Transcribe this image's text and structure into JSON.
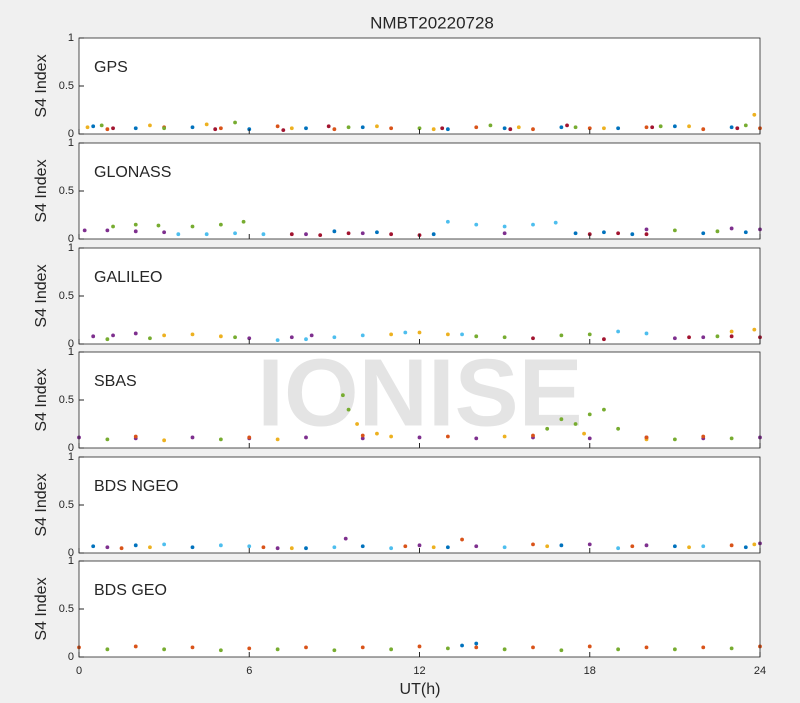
{
  "title": "NMBT20220728",
  "watermark": "IONISE",
  "xlabel": "UT(h)",
  "xlim": [
    0,
    24
  ],
  "xticks": [
    0,
    6,
    12,
    18,
    24
  ],
  "chart_data": [
    {
      "type": "scatter",
      "label": "GPS",
      "ylabel": "S4 Index",
      "ylim": [
        0,
        1
      ],
      "yticks": [
        0,
        0.5,
        1
      ],
      "series": [
        {
          "color": "#0072BD",
          "x": [
            0.5,
            2,
            4,
            6,
            8,
            10,
            13,
            15,
            17,
            19,
            21,
            23
          ],
          "values": [
            0.08,
            0.06,
            0.07,
            0.05,
            0.06,
            0.07,
            0.05,
            0.06,
            0.07,
            0.06,
            0.08,
            0.07
          ]
        },
        {
          "color": "#D95319",
          "x": [
            1,
            3,
            5,
            7,
            9,
            11,
            14,
            16,
            18,
            20,
            22,
            24
          ],
          "values": [
            0.05,
            0.07,
            0.06,
            0.08,
            0.05,
            0.06,
            0.07,
            0.05,
            0.06,
            0.07,
            0.05,
            0.06
          ]
        },
        {
          "color": "#EDB120",
          "x": [
            0.3,
            2.5,
            4.5,
            7.5,
            10.5,
            12.5,
            15.5,
            18.5,
            21.5,
            23.8
          ],
          "values": [
            0.07,
            0.09,
            0.1,
            0.06,
            0.08,
            0.05,
            0.07,
            0.06,
            0.08,
            0.2
          ]
        },
        {
          "color": "#77AC30",
          "x": [
            0.8,
            3,
            5.5,
            9.5,
            12,
            14.5,
            17.5,
            20.5,
            23.5
          ],
          "values": [
            0.09,
            0.06,
            0.12,
            0.07,
            0.06,
            0.09,
            0.07,
            0.08,
            0.09
          ]
        },
        {
          "color": "#A2142F",
          "x": [
            1.2,
            4.8,
            7.2,
            8.8,
            12.8,
            15.2,
            17.2,
            20.2,
            23.2
          ],
          "values": [
            0.06,
            0.05,
            0.04,
            0.08,
            0.06,
            0.05,
            0.09,
            0.07,
            0.06
          ]
        }
      ]
    },
    {
      "type": "scatter",
      "label": "GLONASS",
      "ylabel": "S4 Index",
      "ylim": [
        0,
        1
      ],
      "yticks": [
        0,
        0.5,
        1
      ],
      "series": [
        {
          "color": "#7E2F8E",
          "x": [
            0.2,
            1,
            2,
            3,
            8,
            10,
            15,
            20,
            23,
            24
          ],
          "values": [
            0.09,
            0.09,
            0.08,
            0.07,
            0.05,
            0.06,
            0.06,
            0.1,
            0.11,
            0.1
          ]
        },
        {
          "color": "#77AC30",
          "x": [
            1.2,
            2,
            2.8,
            4,
            5,
            5.8,
            21,
            22.5
          ],
          "values": [
            0.13,
            0.15,
            0.14,
            0.13,
            0.15,
            0.18,
            0.09,
            0.08
          ]
        },
        {
          "color": "#4DBEEE",
          "x": [
            3.5,
            4.5,
            5.5,
            6.5,
            13,
            14,
            15,
            16,
            16.8
          ],
          "values": [
            0.05,
            0.05,
            0.06,
            0.05,
            0.18,
            0.15,
            0.13,
            0.15,
            0.17
          ]
        },
        {
          "color": "#A2142F",
          "x": [
            7.5,
            8.5,
            9.5,
            11,
            12,
            18,
            19,
            20
          ],
          "values": [
            0.05,
            0.04,
            0.06,
            0.05,
            0.04,
            0.05,
            0.06,
            0.05
          ]
        },
        {
          "color": "#0072BD",
          "x": [
            9,
            10.5,
            12.5,
            17.5,
            18.5,
            19.5,
            22,
            23.5
          ],
          "values": [
            0.08,
            0.07,
            0.05,
            0.06,
            0.07,
            0.05,
            0.06,
            0.07
          ]
        }
      ]
    },
    {
      "type": "scatter",
      "label": "GALILEO",
      "ylabel": "S4 Index",
      "ylim": [
        0,
        1
      ],
      "yticks": [
        0,
        0.5,
        1
      ],
      "series": [
        {
          "color": "#7E2F8E",
          "x": [
            0.5,
            1.2,
            2,
            6,
            7.5,
            8.2,
            21,
            22
          ],
          "values": [
            0.08,
            0.09,
            0.11,
            0.06,
            0.07,
            0.09,
            0.06,
            0.07
          ]
        },
        {
          "color": "#EDB120",
          "x": [
            3,
            4,
            5,
            11,
            12,
            13,
            23,
            23.8
          ],
          "values": [
            0.09,
            0.1,
            0.08,
            0.1,
            0.12,
            0.1,
            0.13,
            0.15
          ]
        },
        {
          "color": "#4DBEEE",
          "x": [
            7,
            8,
            9,
            10,
            11.5,
            13.5,
            19,
            20
          ],
          "values": [
            0.04,
            0.05,
            0.07,
            0.09,
            0.12,
            0.1,
            0.13,
            0.11
          ]
        },
        {
          "color": "#77AC30",
          "x": [
            1,
            2.5,
            5.5,
            14,
            15,
            17,
            18,
            22.5
          ],
          "values": [
            0.05,
            0.06,
            0.07,
            0.08,
            0.07,
            0.09,
            0.1,
            0.08
          ]
        },
        {
          "color": "#A2142F",
          "x": [
            16,
            18.5,
            21.5,
            23,
            24
          ],
          "values": [
            0.06,
            0.05,
            0.07,
            0.08,
            0.07
          ]
        }
      ]
    },
    {
      "type": "scatter",
      "label": "SBAS",
      "ylabel": "S4 Index",
      "ylim": [
        0,
        1
      ],
      "yticks": [
        0,
        0.5,
        1
      ],
      "series": [
        {
          "color": "#7E2F8E",
          "x": [
            0,
            2,
            4,
            6,
            8,
            10,
            12,
            14,
            16,
            18,
            20,
            22,
            24
          ],
          "values": [
            0.11,
            0.1,
            0.11,
            0.1,
            0.11,
            0.1,
            0.11,
            0.1,
            0.11,
            0.1,
            0.11,
            0.1,
            0.11
          ]
        },
        {
          "color": "#77AC30",
          "x": [
            1,
            5,
            9.3,
            9.5,
            16.5,
            17,
            17.5,
            18,
            18.5,
            19,
            21,
            23
          ],
          "values": [
            0.09,
            0.09,
            0.55,
            0.4,
            0.2,
            0.3,
            0.25,
            0.35,
            0.4,
            0.2,
            0.09,
            0.1
          ]
        },
        {
          "color": "#EDB120",
          "x": [
            3,
            7,
            9.8,
            10.5,
            11,
            15,
            17.8,
            20
          ],
          "values": [
            0.08,
            0.09,
            0.25,
            0.15,
            0.12,
            0.12,
            0.15,
            0.09
          ]
        },
        {
          "color": "#D95319",
          "x": [
            2,
            6,
            10,
            13,
            16,
            20,
            22
          ],
          "values": [
            0.12,
            0.11,
            0.13,
            0.12,
            0.13,
            0.11,
            0.12
          ]
        }
      ]
    },
    {
      "type": "scatter",
      "label": "BDS NGEO",
      "ylabel": "S4 Index",
      "ylim": [
        0,
        1
      ],
      "yticks": [
        0,
        0.5,
        1
      ],
      "series": [
        {
          "color": "#0072BD",
          "x": [
            0.5,
            2,
            4,
            8,
            10,
            13,
            17,
            21,
            23.5
          ],
          "values": [
            0.07,
            0.08,
            0.06,
            0.05,
            0.07,
            0.06,
            0.08,
            0.07,
            0.06
          ]
        },
        {
          "color": "#4DBEEE",
          "x": [
            3,
            5,
            6,
            9,
            11,
            15,
            19,
            22
          ],
          "values": [
            0.09,
            0.08,
            0.07,
            0.06,
            0.05,
            0.06,
            0.05,
            0.07
          ]
        },
        {
          "color": "#7E2F8E",
          "x": [
            1,
            7,
            9.4,
            12,
            14,
            18,
            20,
            24
          ],
          "values": [
            0.06,
            0.05,
            0.15,
            0.08,
            0.07,
            0.09,
            0.08,
            0.1
          ]
        },
        {
          "color": "#D95319",
          "x": [
            1.5,
            6.5,
            11.5,
            13.5,
            16,
            19.5,
            23
          ],
          "values": [
            0.05,
            0.06,
            0.07,
            0.14,
            0.09,
            0.07,
            0.08
          ]
        },
        {
          "color": "#EDB120",
          "x": [
            2.5,
            7.5,
            12.5,
            16.5,
            21.5,
            23.8
          ],
          "values": [
            0.06,
            0.05,
            0.06,
            0.07,
            0.06,
            0.09
          ]
        }
      ]
    },
    {
      "type": "scatter",
      "label": "BDS GEO",
      "ylabel": "S4 Index",
      "ylim": [
        0,
        1
      ],
      "yticks": [
        0,
        0.5,
        1
      ],
      "series": [
        {
          "color": "#D95319",
          "x": [
            0,
            2,
            4,
            6,
            8,
            10,
            12,
            14,
            16,
            18,
            20,
            22,
            24
          ],
          "values": [
            0.1,
            0.11,
            0.1,
            0.09,
            0.1,
            0.1,
            0.11,
            0.1,
            0.1,
            0.11,
            0.1,
            0.1,
            0.11
          ]
        },
        {
          "color": "#77AC30",
          "x": [
            1,
            3,
            5,
            7,
            9,
            11,
            13,
            15,
            17,
            19,
            21,
            23
          ],
          "values": [
            0.08,
            0.08,
            0.07,
            0.08,
            0.07,
            0.08,
            0.09,
            0.08,
            0.07,
            0.08,
            0.08,
            0.09
          ]
        },
        {
          "color": "#0072BD",
          "x": [
            13.5,
            14
          ],
          "values": [
            0.12,
            0.14
          ]
        }
      ]
    }
  ]
}
